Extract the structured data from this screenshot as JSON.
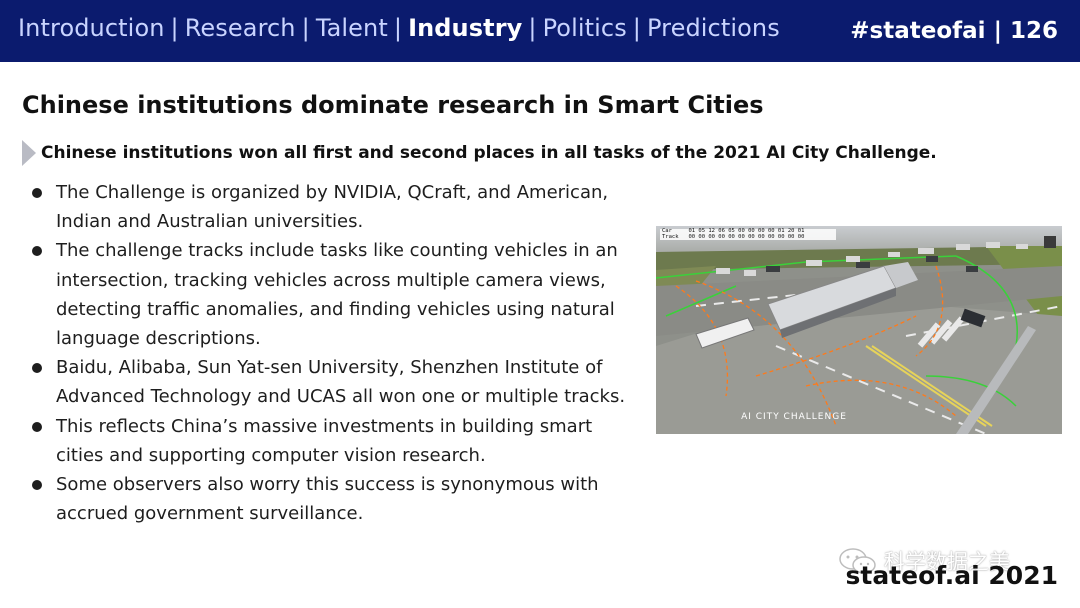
{
  "header": {
    "nav": [
      {
        "label": "Introduction",
        "active": false
      },
      {
        "label": "Research",
        "active": false
      },
      {
        "label": "Talent",
        "active": false
      },
      {
        "label": "Industry",
        "active": true
      },
      {
        "label": "Politics",
        "active": false
      },
      {
        "label": "Predictions",
        "active": false
      }
    ],
    "separator": "|",
    "hashtag": "#stateofai | 126"
  },
  "slide": {
    "title": "Chinese institutions dominate research in Smart Cities",
    "subtitle": "Chinese institutions won all first and second places in all tasks of the 2021 AI City Challenge.",
    "bullets": [
      "The Challenge is organized by NVIDIA, QCraft, and American, Indian and Australian universities.",
      "The challenge tracks include tasks like counting vehicles in an intersection, tracking vehicles across multiple camera views, detecting traffic anomalies, and finding vehicles using natural language descriptions.",
      "Baidu, Alibaba, Sun Yat-sen University, Shenzhen Institute of Advanced Technology and UCAS all won one or multiple tracks.",
      "This reflects China’s massive investments in building smart cities and supporting computer vision research.",
      "Some observers also worry this success is synonymous with accrued government surveillance."
    ]
  },
  "image": {
    "overlay_label": "AI CITY CHALLENGE",
    "hud_labels": [
      "Car",
      "Track"
    ],
    "hud_values": [
      "01 05 12 06 05 00 00 00 00 01 20 01",
      "00 00 00 00 00 00 00 00 00 00 00 00"
    ],
    "icon": "intersection-photo"
  },
  "footer": {
    "logo": "stateof.ai 2021",
    "watermark": "科学数据之美"
  },
  "colors": {
    "header_bg": "#0b1b6e",
    "nav_text": "#c9d4ff",
    "nav_active": "#ffffff",
    "arrow": "#b9bbc4",
    "annotation_orange": "#ff7a1a",
    "annotation_green": "#3ad13a"
  }
}
